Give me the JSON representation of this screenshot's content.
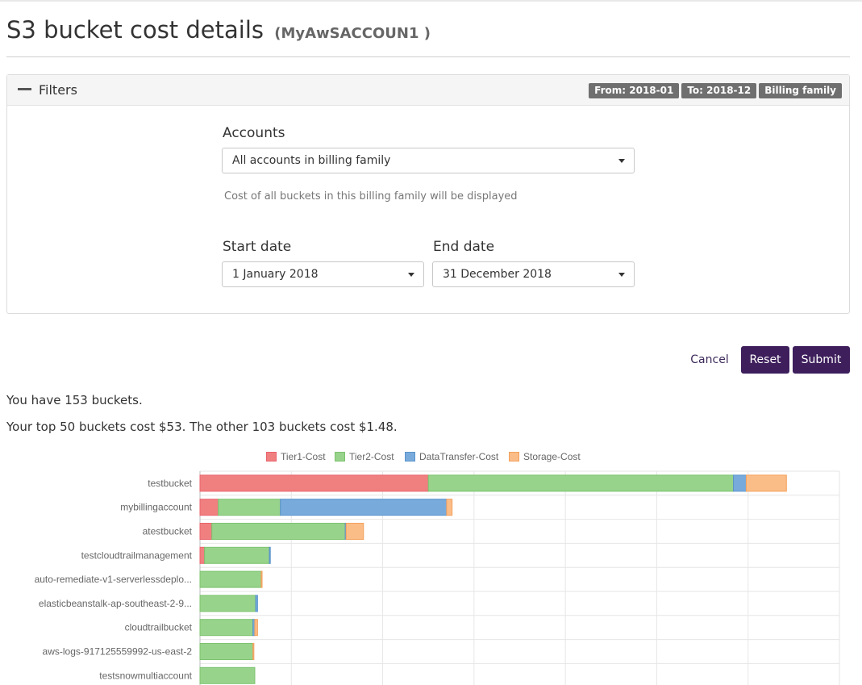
{
  "page": {
    "title": "S3 bucket cost details",
    "account": "(MyAwSACCOUN1 )"
  },
  "filters": {
    "label": "Filters",
    "badges": [
      "From: 2018-01",
      "To: 2018-12",
      "Billing family"
    ],
    "accounts": {
      "label": "Accounts",
      "value": "All accounts in billing family",
      "help": "Cost of all buckets in this billing family will be displayed"
    },
    "start_date": {
      "label": "Start date",
      "value": "1 January 2018"
    },
    "end_date": {
      "label": "End date",
      "value": "31 December 2018"
    }
  },
  "actions": {
    "cancel": "Cancel",
    "reset": "Reset",
    "submit": "Submit"
  },
  "summary": {
    "line1": "You have 153 buckets.",
    "line2": "Your top 50 buckets cost $53. The other 103 buckets cost $1.48."
  },
  "colors": {
    "brand": "#3e1f5c",
    "tier1": "#f08080",
    "tier2": "#98d38c",
    "transfer": "#78abdc",
    "storage": "#fbbd88",
    "tier1_border": "#e8636c",
    "tier2_border": "#7cc36e",
    "transfer_border": "#5a93cb",
    "storage_border": "#f3a05c"
  },
  "chart_data": {
    "type": "bar",
    "orientation": "horizontal",
    "stacked": true,
    "categories": [
      "testbucket",
      "mybillingaccount",
      "atestbucket",
      "testcloudtrailmanagement",
      "auto-remediate-v1-serverlessdeplo...",
      "elasticbeanstalk-ap-southeast-2-9...",
      "cloudtrailbucket",
      "aws-logs-917125559992-us-east-2",
      "testsnowmultiaccount"
    ],
    "series": [
      {
        "name": "Tier1-Cost",
        "values": [
          12.5,
          1.0,
          0.65,
          0.25,
          0.0,
          0.0,
          0.0,
          0.0,
          0.0
        ]
      },
      {
        "name": "Tier2-Cost",
        "values": [
          16.7,
          3.4,
          7.3,
          3.55,
          3.35,
          3.05,
          2.9,
          2.9,
          3.0
        ]
      },
      {
        "name": "DataTransfer-Cost",
        "values": [
          0.7,
          9.1,
          0.05,
          0.05,
          0.0,
          0.1,
          0.1,
          0.0,
          0.0
        ]
      },
      {
        "name": "Storage-Cost",
        "values": [
          2.2,
          0.3,
          0.95,
          0.0,
          0.05,
          0.0,
          0.15,
          0.05,
          0.0
        ]
      }
    ],
    "xlim": [
      0,
      35
    ],
    "grid": true,
    "legend": "top-center"
  }
}
